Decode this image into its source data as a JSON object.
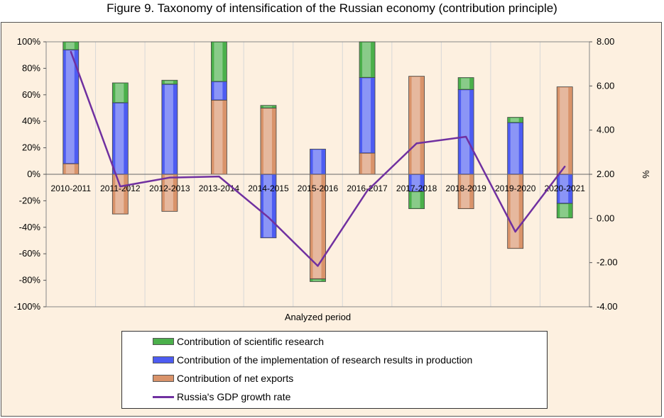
{
  "title": "Figure 9. Taxonomy of intensification of the Russian economy (contribution principle)",
  "chart_data": {
    "type": "bar",
    "stacked": true,
    "categories": [
      "2010-2011",
      "2011-2012",
      "2012-2013",
      "2013-2014",
      "2014-2015",
      "2015-2016",
      "2016-2017",
      "2017-2018",
      "2018-2019",
      "2019-2020",
      "2020-2021"
    ],
    "series": [
      {
        "name": "Contribution of net exports",
        "color": "#d9936a",
        "values": [
          8,
          -30,
          -28,
          56,
          50,
          -79,
          16,
          74,
          -26,
          -56,
          66
        ]
      },
      {
        "name": "Contribution of the implementation of research results in production",
        "color": "#4d5cf2",
        "values": [
          86,
          54,
          68,
          14,
          -48,
          19,
          57,
          -13,
          64,
          39,
          -22
        ]
      },
      {
        "name": "Contribution of scientific research",
        "color": "#4bb04b",
        "values": [
          6,
          15,
          3,
          30,
          2,
          -2,
          27,
          -13,
          9,
          4,
          -11
        ]
      }
    ],
    "line_series": {
      "name": "Russia's GDP growth rate",
      "color": "#7030a0",
      "values": [
        7.55,
        1.45,
        1.85,
        1.9,
        0.05,
        -2.15,
        1.25,
        3.4,
        3.7,
        -0.6,
        2.35
      ]
    },
    "xlabel": "Analyzed period",
    "ylabel_right": "%",
    "ylim_left": [
      -100,
      100
    ],
    "ylim_right": [
      -4,
      8
    ],
    "left_ticks": [
      "100%",
      "80%",
      "60%",
      "40%",
      "20%",
      "0%",
      "-20%",
      "-40%",
      "-60%",
      "-80%",
      "-100%"
    ],
    "right_ticks": [
      "8.00",
      "6.00",
      "4.00",
      "2.00",
      "0.00",
      "-2.00",
      "-4.00"
    ],
    "grid": "vertical"
  },
  "legend": {
    "items": [
      {
        "label": "Contribution of scientific research",
        "color": "#4bb04b"
      },
      {
        "label": "Contribution of the implementation of research results in production",
        "color": "#4d5cf2"
      },
      {
        "label": "Contribution of net exports",
        "color": "#d9936a"
      },
      {
        "label": "Russia's GDP growth rate",
        "color": "#7030a0"
      }
    ]
  }
}
